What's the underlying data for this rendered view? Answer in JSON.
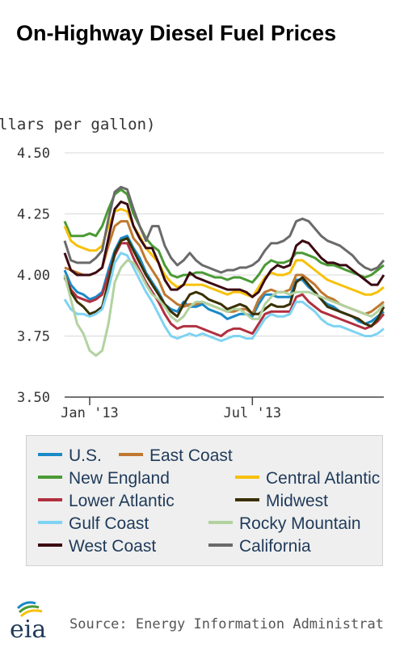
{
  "title": "On-Highway Diesel Fuel Prices",
  "source": "Source: Energy Information Administrat",
  "logo_text": "eia",
  "chart_data": {
    "type": "line",
    "ylabel": "llars per gallon)",
    "ylim": [
      3.5,
      4.5
    ],
    "yticks": [
      "4.50",
      "4.25",
      "4.00",
      "3.75",
      "3.50"
    ],
    "xticks": [
      {
        "label": "Jan '13",
        "index": 4
      },
      {
        "label": "Jul '13",
        "index": 30
      }
    ],
    "grid": true,
    "legend_position": "bottom",
    "x": [
      "2012-12-03",
      "2012-12-10",
      "2012-12-17",
      "2012-12-24",
      "2012-12-31",
      "2013-01-07",
      "2013-01-14",
      "2013-01-21",
      "2013-01-28",
      "2013-02-04",
      "2013-02-11",
      "2013-02-18",
      "2013-02-25",
      "2013-03-04",
      "2013-03-11",
      "2013-03-18",
      "2013-03-25",
      "2013-04-01",
      "2013-04-08",
      "2013-04-15",
      "2013-04-22",
      "2013-04-29",
      "2013-05-06",
      "2013-05-13",
      "2013-05-20",
      "2013-05-27",
      "2013-06-03",
      "2013-06-10",
      "2013-06-17",
      "2013-06-24",
      "2013-07-01",
      "2013-07-08",
      "2013-07-15",
      "2013-07-22",
      "2013-07-29",
      "2013-08-05",
      "2013-08-12",
      "2013-08-19",
      "2013-08-26",
      "2013-09-02",
      "2013-09-09",
      "2013-09-16",
      "2013-09-23",
      "2013-09-30",
      "2013-10-07",
      "2013-10-14",
      "2013-10-21",
      "2013-10-28",
      "2013-11-04",
      "2013-11-11",
      "2013-11-18",
      "2013-11-25"
    ],
    "series": [
      {
        "name": "U.S.",
        "color": "#1a8ac8",
        "values": [
          4.02,
          3.96,
          3.93,
          3.92,
          3.9,
          3.91,
          3.93,
          4.02,
          4.1,
          4.15,
          4.16,
          4.11,
          4.07,
          4.01,
          3.97,
          3.93,
          3.88,
          3.86,
          3.85,
          3.89,
          3.87,
          3.87,
          3.88,
          3.86,
          3.85,
          3.84,
          3.82,
          3.83,
          3.84,
          3.84,
          3.83,
          3.88,
          3.92,
          3.92,
          3.91,
          3.91,
          3.91,
          3.98,
          3.98,
          3.95,
          3.93,
          3.9,
          3.88,
          3.87,
          3.85,
          3.84,
          3.83,
          3.81,
          3.8,
          3.81,
          3.83,
          3.85
        ]
      },
      {
        "name": "East Coast",
        "color": "#c07830",
        "values": [
          4.03,
          4.02,
          4.01,
          4.0,
          4.0,
          4.01,
          4.03,
          4.12,
          4.2,
          4.22,
          4.22,
          4.15,
          4.12,
          4.06,
          4.02,
          3.98,
          3.92,
          3.9,
          3.88,
          3.87,
          3.88,
          3.88,
          3.89,
          3.88,
          3.87,
          3.86,
          3.85,
          3.85,
          3.86,
          3.86,
          3.84,
          3.9,
          3.93,
          3.94,
          3.93,
          3.93,
          3.94,
          4.0,
          4.0,
          3.98,
          3.96,
          3.93,
          3.91,
          3.9,
          3.88,
          3.87,
          3.86,
          3.85,
          3.84,
          3.85,
          3.87,
          3.89
        ]
      },
      {
        "name": "New England",
        "color": "#4a9a34",
        "values": [
          4.22,
          4.16,
          4.16,
          4.16,
          4.17,
          4.16,
          4.2,
          4.27,
          4.33,
          4.35,
          4.33,
          4.25,
          4.2,
          4.15,
          4.12,
          4.1,
          4.04,
          4.0,
          3.99,
          4.0,
          4.0,
          4.01,
          4.01,
          4.0,
          3.99,
          3.99,
          3.98,
          3.99,
          3.99,
          3.98,
          3.97,
          4.0,
          4.04,
          4.06,
          4.05,
          4.05,
          4.06,
          4.09,
          4.09,
          4.08,
          4.07,
          4.05,
          4.04,
          4.04,
          4.03,
          4.02,
          4.01,
          4.0,
          3.99,
          4.0,
          4.02,
          4.04
        ]
      },
      {
        "name": "Central Atlantic",
        "color": "#f7c10a",
        "values": [
          4.2,
          4.14,
          4.12,
          4.11,
          4.1,
          4.1,
          4.12,
          4.2,
          4.26,
          4.27,
          4.26,
          4.2,
          4.16,
          4.11,
          4.08,
          4.05,
          4.0,
          3.97,
          3.95,
          3.96,
          3.96,
          3.96,
          3.96,
          3.95,
          3.94,
          3.93,
          3.92,
          3.93,
          3.93,
          3.92,
          3.91,
          3.95,
          3.99,
          4.01,
          4.0,
          4.0,
          4.01,
          4.06,
          4.06,
          4.04,
          4.02,
          4.0,
          3.98,
          3.97,
          3.96,
          3.95,
          3.94,
          3.93,
          3.92,
          3.92,
          3.93,
          3.95
        ]
      },
      {
        "name": "Lower Atlantic",
        "color": "#b03040",
        "values": [
          4.0,
          3.94,
          3.91,
          3.9,
          3.89,
          3.9,
          3.92,
          4.0,
          4.08,
          4.13,
          4.13,
          4.07,
          4.02,
          3.97,
          3.93,
          3.89,
          3.84,
          3.8,
          3.78,
          3.79,
          3.79,
          3.79,
          3.78,
          3.77,
          3.76,
          3.75,
          3.77,
          3.78,
          3.78,
          3.77,
          3.76,
          3.8,
          3.84,
          3.85,
          3.85,
          3.85,
          3.85,
          3.91,
          3.92,
          3.89,
          3.87,
          3.85,
          3.84,
          3.83,
          3.82,
          3.81,
          3.8,
          3.79,
          3.78,
          3.79,
          3.81,
          3.84
        ]
      },
      {
        "name": "Midwest",
        "color": "#3a3000",
        "values": [
          3.99,
          3.93,
          3.89,
          3.87,
          3.84,
          3.85,
          3.87,
          3.97,
          4.09,
          4.14,
          4.15,
          4.1,
          4.05,
          4.0,
          3.96,
          3.92,
          3.88,
          3.85,
          3.83,
          3.88,
          3.92,
          3.93,
          3.92,
          3.9,
          3.89,
          3.88,
          3.86,
          3.87,
          3.88,
          3.87,
          3.84,
          3.84,
          3.86,
          3.88,
          3.87,
          3.87,
          3.88,
          3.97,
          3.99,
          3.96,
          3.93,
          3.9,
          3.87,
          3.86,
          3.85,
          3.84,
          3.83,
          3.82,
          3.8,
          3.79,
          3.82,
          3.87
        ]
      },
      {
        "name": "Gulf Coast",
        "color": "#7fd3f2",
        "values": [
          3.9,
          3.86,
          3.84,
          3.84,
          3.83,
          3.84,
          3.86,
          3.94,
          4.05,
          4.09,
          4.08,
          4.03,
          3.98,
          3.93,
          3.89,
          3.84,
          3.79,
          3.75,
          3.74,
          3.75,
          3.76,
          3.75,
          3.76,
          3.75,
          3.74,
          3.73,
          3.74,
          3.75,
          3.75,
          3.74,
          3.74,
          3.78,
          3.82,
          3.84,
          3.83,
          3.83,
          3.84,
          3.89,
          3.89,
          3.87,
          3.85,
          3.82,
          3.8,
          3.79,
          3.79,
          3.78,
          3.77,
          3.76,
          3.75,
          3.75,
          3.76,
          3.78
        ]
      },
      {
        "name": "Rocky Mountain",
        "color": "#b2d2a0",
        "values": [
          4.0,
          3.9,
          3.8,
          3.76,
          3.69,
          3.67,
          3.69,
          3.8,
          3.97,
          4.03,
          4.06,
          4.05,
          4.01,
          3.96,
          3.92,
          3.9,
          3.87,
          3.83,
          3.81,
          3.83,
          3.87,
          3.89,
          3.89,
          3.88,
          3.87,
          3.86,
          3.85,
          3.86,
          3.86,
          3.84,
          3.82,
          3.82,
          3.88,
          3.91,
          3.93,
          3.93,
          3.92,
          3.93,
          3.93,
          3.93,
          3.92,
          3.91,
          3.9,
          3.89,
          3.88,
          3.87,
          3.86,
          3.85,
          3.84,
          3.83,
          3.85,
          3.88
        ]
      },
      {
        "name": "West Coast",
        "color": "#3a0a12",
        "values": [
          4.09,
          4.02,
          4.0,
          4.0,
          4.0,
          4.01,
          4.03,
          4.15,
          4.27,
          4.3,
          4.29,
          4.2,
          4.15,
          4.11,
          4.11,
          4.05,
          3.98,
          3.94,
          3.94,
          3.96,
          4.01,
          3.99,
          3.98,
          3.97,
          3.96,
          3.95,
          3.94,
          3.94,
          3.94,
          3.93,
          3.91,
          3.93,
          3.98,
          4.02,
          4.04,
          4.03,
          4.04,
          4.12,
          4.14,
          4.13,
          4.1,
          4.07,
          4.05,
          4.05,
          4.04,
          4.04,
          4.02,
          4.0,
          3.98,
          3.96,
          3.96,
          4.0
        ]
      },
      {
        "name": "California",
        "color": "#6a6a6a",
        "values": [
          4.14,
          4.06,
          4.05,
          4.05,
          4.05,
          4.07,
          4.1,
          4.23,
          4.34,
          4.36,
          4.35,
          4.27,
          4.2,
          4.14,
          4.2,
          4.2,
          4.12,
          4.07,
          4.04,
          4.06,
          4.09,
          4.06,
          4.04,
          4.03,
          4.02,
          4.01,
          4.02,
          4.02,
          4.03,
          4.03,
          4.04,
          4.06,
          4.1,
          4.13,
          4.13,
          4.14,
          4.16,
          4.22,
          4.23,
          4.22,
          4.19,
          4.16,
          4.14,
          4.13,
          4.12,
          4.1,
          4.08,
          4.05,
          4.03,
          4.02,
          4.03,
          4.06
        ]
      }
    ]
  }
}
